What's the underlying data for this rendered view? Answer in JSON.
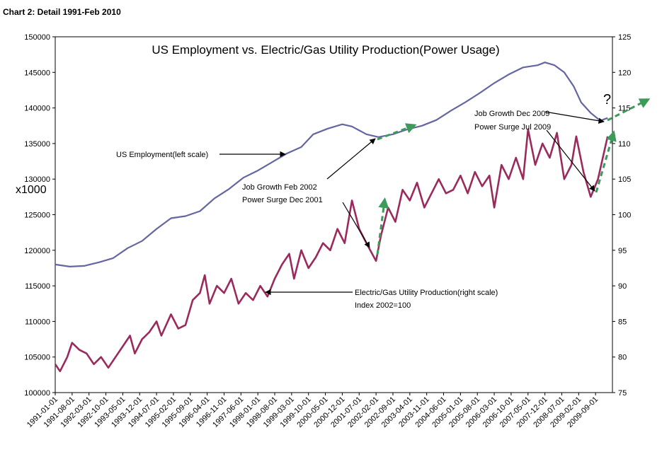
{
  "heading": "Chart 2: Detail 1991-Feb 2010",
  "chart_data": {
    "type": "line",
    "title": "US Employment vs. Electric/Gas Utility Production(Power Usage)",
    "left_unit_label": "x1000",
    "x_ticks": [
      "1991-01-01",
      "1991-08-01",
      "1992-03-01",
      "1992-10-01",
      "1993-05-01",
      "1993-12-01",
      "1994-07-01",
      "1995-02-01",
      "1995-09-01",
      "1996-04-01",
      "1996-11-01",
      "1997-06-01",
      "1998-01-01",
      "1998-08-01",
      "1999-03-01",
      "1999-10-01",
      "2000-05-01",
      "2000-12-01",
      "2001-07-01",
      "2002-02-01",
      "2002-09-01",
      "2003-04-01",
      "2003-11-01",
      "2004-06-01",
      "2005-01-01",
      "2005-08-01",
      "2006-03-01",
      "2006-10-01",
      "2007-05-01",
      "2007-12-01",
      "2008-07-01",
      "2009-02-01",
      "2009-09-01"
    ],
    "left_axis": {
      "range": [
        100000,
        150000
      ],
      "ticks": [
        "100000",
        "105000",
        "110000",
        "115000",
        "120000",
        "125000",
        "130000",
        "135000",
        "140000",
        "145000",
        "150000"
      ]
    },
    "right_axis": {
      "range": [
        75,
        125
      ],
      "ticks": [
        "75",
        "80",
        "85",
        "90",
        "95",
        "100",
        "105",
        "110",
        "115",
        "120",
        "125"
      ]
    },
    "grid": false,
    "legend": "none",
    "series": [
      {
        "name": "US Employment(left scale)",
        "axis": "left",
        "color": "#6366a0",
        "points": [
          [
            "1991-01",
            118000
          ],
          [
            "1991-07",
            117700
          ],
          [
            "1992-01",
            117800
          ],
          [
            "1992-07",
            118300
          ],
          [
            "1993-01",
            118900
          ],
          [
            "1993-07",
            120300
          ],
          [
            "1994-01",
            121300
          ],
          [
            "1994-07",
            123000
          ],
          [
            "1995-01",
            124500
          ],
          [
            "1995-07",
            124800
          ],
          [
            "1996-01",
            125500
          ],
          [
            "1996-07",
            127300
          ],
          [
            "1997-01",
            128600
          ],
          [
            "1997-07",
            130200
          ],
          [
            "1998-01",
            131200
          ],
          [
            "1998-07",
            132400
          ],
          [
            "1999-01",
            133600
          ],
          [
            "1999-07",
            134500
          ],
          [
            "1999-12",
            136300
          ],
          [
            "2000-06",
            137100
          ],
          [
            "2000-12",
            137700
          ],
          [
            "2001-04",
            137400
          ],
          [
            "2001-10",
            136300
          ],
          [
            "2002-03",
            135900
          ],
          [
            "2002-09",
            136300
          ],
          [
            "2003-03",
            137000
          ],
          [
            "2003-09",
            137500
          ],
          [
            "2004-03",
            138300
          ],
          [
            "2004-09",
            139600
          ],
          [
            "2005-03",
            140800
          ],
          [
            "2005-09",
            142100
          ],
          [
            "2006-03",
            143500
          ],
          [
            "2006-09",
            144700
          ],
          [
            "2007-03",
            145700
          ],
          [
            "2007-09",
            146000
          ],
          [
            "2007-12",
            146400
          ],
          [
            "2008-04",
            146000
          ],
          [
            "2008-08",
            145000
          ],
          [
            "2008-12",
            143000
          ],
          [
            "2009-03",
            140800
          ],
          [
            "2009-07",
            139300
          ],
          [
            "2009-11",
            138200
          ],
          [
            "2010-02",
            138600
          ]
        ]
      },
      {
        "name": "Electric/Gas Utility Production(right scale)",
        "axis": "right",
        "color": "#9b2a5c",
        "points": [
          [
            "1991-01",
            79
          ],
          [
            "1991-03",
            78
          ],
          [
            "1991-06",
            80
          ],
          [
            "1991-08",
            82
          ],
          [
            "1991-11",
            81
          ],
          [
            "1992-02",
            80.5
          ],
          [
            "1992-05",
            79
          ],
          [
            "1992-08",
            80
          ],
          [
            "1992-11",
            78.5
          ],
          [
            "1993-02",
            80
          ],
          [
            "1993-05",
            81.5
          ],
          [
            "1993-08",
            83
          ],
          [
            "1993-10",
            80.5
          ],
          [
            "1994-01",
            82.5
          ],
          [
            "1994-04",
            83.5
          ],
          [
            "1994-07",
            85
          ],
          [
            "1994-09",
            83
          ],
          [
            "1995-01",
            86
          ],
          [
            "1995-04",
            84
          ],
          [
            "1995-07",
            84.5
          ],
          [
            "1995-10",
            88
          ],
          [
            "1996-01",
            89
          ],
          [
            "1996-03",
            91.5
          ],
          [
            "1996-05",
            87.5
          ],
          [
            "1996-08",
            90
          ],
          [
            "1996-11",
            89
          ],
          [
            "1997-02",
            91
          ],
          [
            "1997-05",
            87.5
          ],
          [
            "1997-08",
            89
          ],
          [
            "1997-11",
            88
          ],
          [
            "1998-02",
            90
          ],
          [
            "1998-05",
            88.5
          ],
          [
            "1998-08",
            91
          ],
          [
            "1998-11",
            93
          ],
          [
            "1999-02",
            94.5
          ],
          [
            "1999-04",
            91
          ],
          [
            "1999-07",
            95
          ],
          [
            "1999-10",
            92.5
          ],
          [
            "2000-01",
            94
          ],
          [
            "2000-04",
            96
          ],
          [
            "2000-07",
            95
          ],
          [
            "2000-10",
            98
          ],
          [
            "2001-01",
            96
          ],
          [
            "2001-04",
            102
          ],
          [
            "2001-07",
            98
          ],
          [
            "2001-10",
            96
          ],
          [
            "2002-02",
            93.5
          ],
          [
            "2002-04",
            97
          ],
          [
            "2002-07",
            101
          ],
          [
            "2002-10",
            99
          ],
          [
            "2003-01",
            103.5
          ],
          [
            "2003-04",
            102
          ],
          [
            "2003-07",
            104.5
          ],
          [
            "2003-10",
            101
          ],
          [
            "2004-01",
            103
          ],
          [
            "2004-04",
            105
          ],
          [
            "2004-07",
            103
          ],
          [
            "2004-10",
            103.5
          ],
          [
            "2005-01",
            105.5
          ],
          [
            "2005-04",
            103
          ],
          [
            "2005-07",
            106
          ],
          [
            "2005-10",
            104
          ],
          [
            "2006-01",
            105.5
          ],
          [
            "2006-03",
            101
          ],
          [
            "2006-06",
            107
          ],
          [
            "2006-09",
            105
          ],
          [
            "2006-12",
            108
          ],
          [
            "2007-03",
            105
          ],
          [
            "2007-05",
            112
          ],
          [
            "2007-08",
            107
          ],
          [
            "2007-11",
            110
          ],
          [
            "2008-02",
            108
          ],
          [
            "2008-05",
            111.5
          ],
          [
            "2008-08",
            105
          ],
          [
            "2008-11",
            107
          ],
          [
            "2009-01",
            111
          ],
          [
            "2009-04",
            106
          ],
          [
            "2009-07",
            102.5
          ],
          [
            "2009-10",
            105
          ],
          [
            "2010-02",
            111
          ]
        ]
      }
    ],
    "annotations": [
      {
        "text": "US Employment(left scale)"
      },
      {
        "text": "Job Growth Feb 2002"
      },
      {
        "text": "Power Surge Dec 2001"
      },
      {
        "text": "Electric/Gas Utility Production(right scale)"
      },
      {
        "text": "Index 2002=100"
      },
      {
        "text": "Job Growth Dec 2009"
      },
      {
        "text": "Power Surge Jul 2009"
      },
      {
        "text": "?"
      }
    ]
  }
}
